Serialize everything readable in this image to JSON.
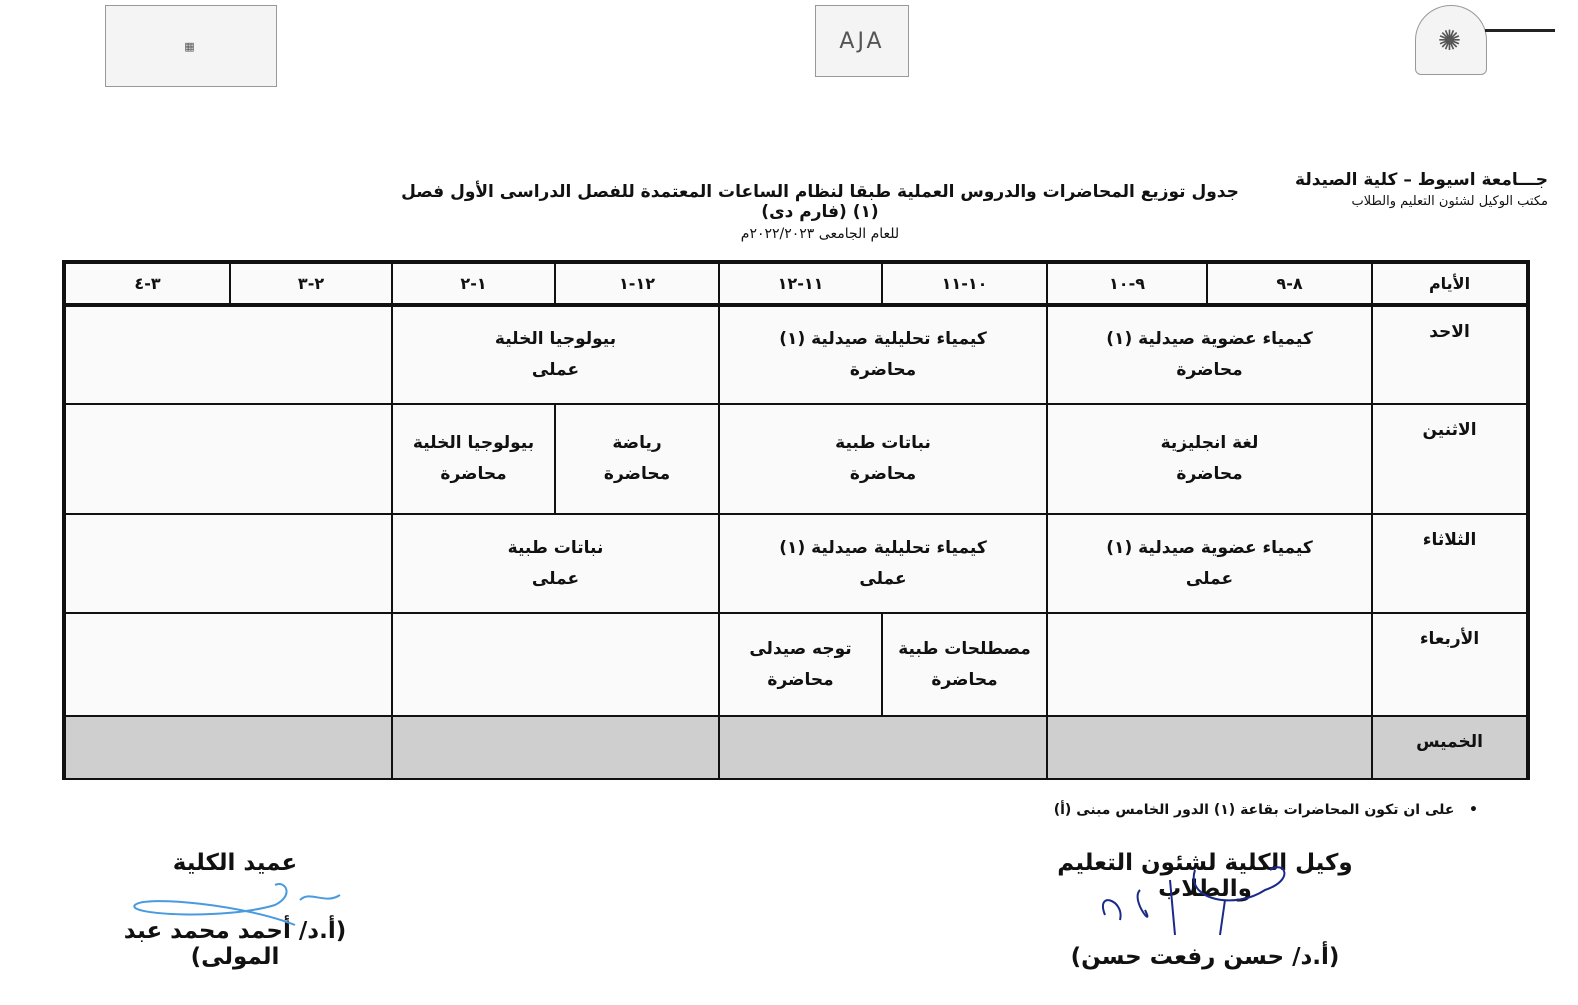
{
  "header": {
    "university": "جـــامعة اسيوط – كلية الصيدلة",
    "office": "مكتب الوكيل لشئون التعليم والطلاب",
    "title": "جدول توزيع المحاضرات والدروس العملية طبقا لنظام الساعات المعتمدة للفصل الدراسى الأول فصل (١) (فارم دى)",
    "year": "للعام الجامعى ٢٠٢٢/٢٠٢٣م",
    "logo_center": "AJA"
  },
  "table": {
    "columns": [
      "الأيام",
      "٨-٩",
      "٩-١٠",
      "١٠-١١",
      "١١-١٢",
      "١٢-١",
      "١-٢",
      "٢-٣",
      "٣-٤"
    ],
    "rows": [
      {
        "day": "الاحد",
        "cells": [
          {
            "span": 2,
            "lines": [
              "كيمياء عضوية صيدلية (١)",
              "محاضرة"
            ]
          },
          {
            "span": 2,
            "lines": [
              "كيمياء تحليلية صيدلية (١)",
              "محاضرة"
            ]
          },
          {
            "span": 2,
            "lines": [
              "بيولوجيا الخلية",
              "عملى"
            ]
          },
          {
            "span": 2,
            "lines": []
          }
        ]
      },
      {
        "day": "الاثنين",
        "cells": [
          {
            "span": 2,
            "lines": [
              "لغة انجليزية",
              "محاضرة"
            ]
          },
          {
            "span": 2,
            "lines": [
              "نباتات طبية",
              "محاضرة"
            ]
          },
          {
            "span": 1,
            "lines": [
              "رياضة",
              "محاضرة"
            ]
          },
          {
            "span": 1,
            "lines": [
              "بيولوجيا الخلية",
              "محاضرة"
            ]
          },
          {
            "span": 2,
            "lines": []
          }
        ]
      },
      {
        "day": "الثلاثاء",
        "cells": [
          {
            "span": 2,
            "lines": [
              "كيمياء عضوية صيدلية (١)",
              "عملى"
            ]
          },
          {
            "span": 2,
            "lines": [
              "كيمياء تحليلية صيدلية (١)",
              "عملى"
            ]
          },
          {
            "span": 2,
            "lines": [
              "نباتات طبية",
              "عملى"
            ]
          },
          {
            "span": 2,
            "lines": []
          }
        ]
      },
      {
        "day": "الأربعاء",
        "cells": [
          {
            "span": 2,
            "lines": []
          },
          {
            "span": 1,
            "lines": [
              "مصطلحات طبية",
              "محاضرة"
            ]
          },
          {
            "span": 1,
            "lines": [
              "توجه صيدلى",
              "محاضرة"
            ]
          },
          {
            "span": 2,
            "lines": []
          },
          {
            "span": 2,
            "lines": []
          }
        ]
      },
      {
        "day": "الخميس",
        "gray": true,
        "cells": [
          {
            "span": 2,
            "lines": []
          },
          {
            "span": 2,
            "lines": []
          },
          {
            "span": 2,
            "lines": []
          },
          {
            "span": 2,
            "lines": []
          }
        ]
      }
    ]
  },
  "note": "على ان تكون المحاضرات بقاعة (١) الدور الخامس مبنى (أ)",
  "signatures": {
    "vice_dean_role": "وكيل الكلية لشئون التعليم والطلاب",
    "vice_dean_name": "(أ.د/ حسن رفعت حسن)",
    "dean_role": "عميد الكلية",
    "dean_name": "(أ.د/ أحمد محمد عبد المولى)"
  },
  "colors": {
    "signature_vice": "#1a2a8a",
    "signature_dean": "#4a9ae0",
    "thursday_fill": "#cfcfcf"
  }
}
